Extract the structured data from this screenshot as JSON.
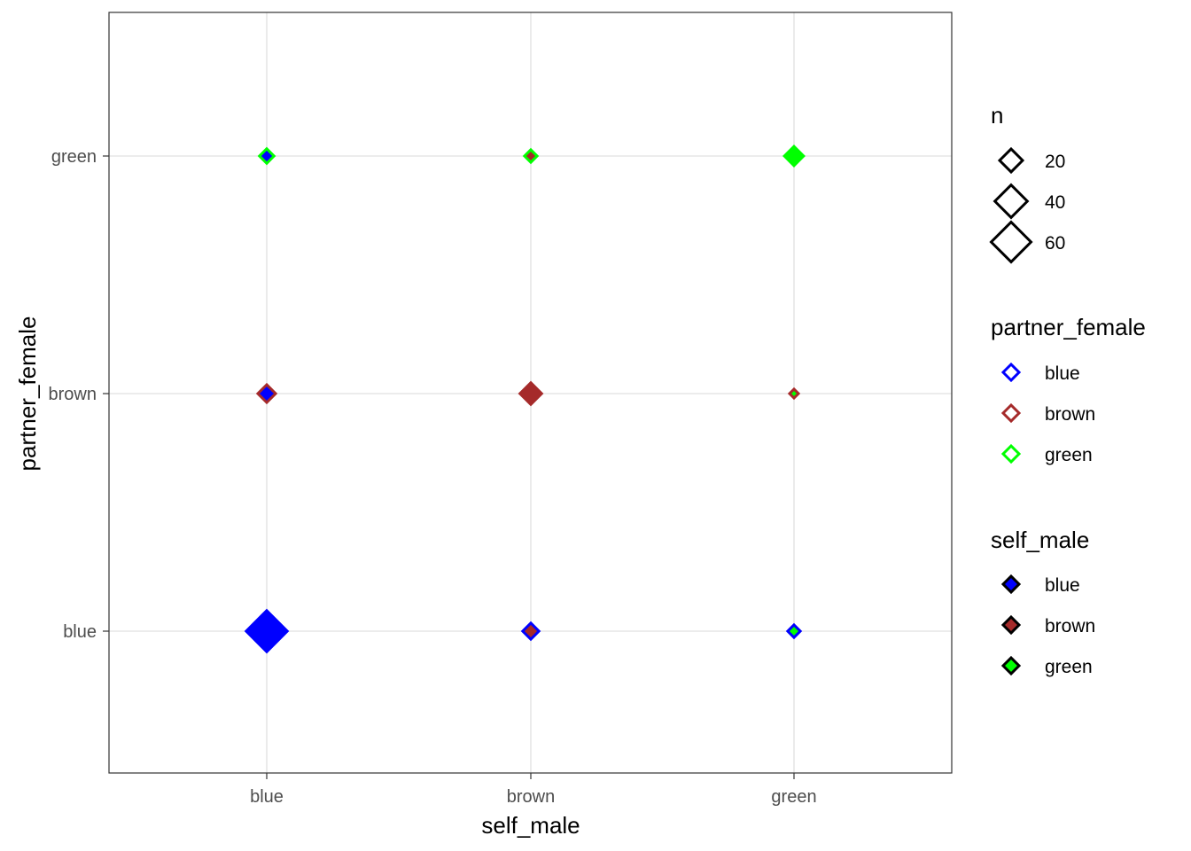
{
  "chart_data": {
    "type": "scatter",
    "xlabel": "self_male",
    "ylabel": "partner_female",
    "x_categories": [
      "blue",
      "brown",
      "green"
    ],
    "y_categories": [
      "blue",
      "brown",
      "green"
    ],
    "grid": true,
    "legend_placement": "right",
    "colors": {
      "blue": "#0000ff",
      "brown": "#a52a2a",
      "green": "#00ff00"
    },
    "points": [
      {
        "self_male": "blue",
        "partner_female": "blue",
        "n": 64
      },
      {
        "self_male": "brown",
        "partner_female": "blue",
        "n": 10
      },
      {
        "self_male": "green",
        "partner_female": "blue",
        "n": 6
      },
      {
        "self_male": "blue",
        "partner_female": "brown",
        "n": 12
      },
      {
        "self_male": "brown",
        "partner_female": "brown",
        "n": 18
      },
      {
        "self_male": "green",
        "partner_female": "brown",
        "n": 3
      },
      {
        "self_male": "blue",
        "partner_female": "green",
        "n": 8
      },
      {
        "self_male": "brown",
        "partner_female": "green",
        "n": 6
      },
      {
        "self_male": "green",
        "partner_female": "green",
        "n": 14
      }
    ],
    "legends": {
      "size": {
        "title": "n",
        "breaks": [
          20,
          40,
          60
        ],
        "labels": [
          "20",
          "40",
          "60"
        ]
      },
      "color": {
        "title": "partner_female",
        "labels": [
          "blue",
          "brown",
          "green"
        ]
      },
      "fill": {
        "title": "self_male",
        "labels": [
          "blue",
          "brown",
          "green"
        ]
      }
    }
  }
}
